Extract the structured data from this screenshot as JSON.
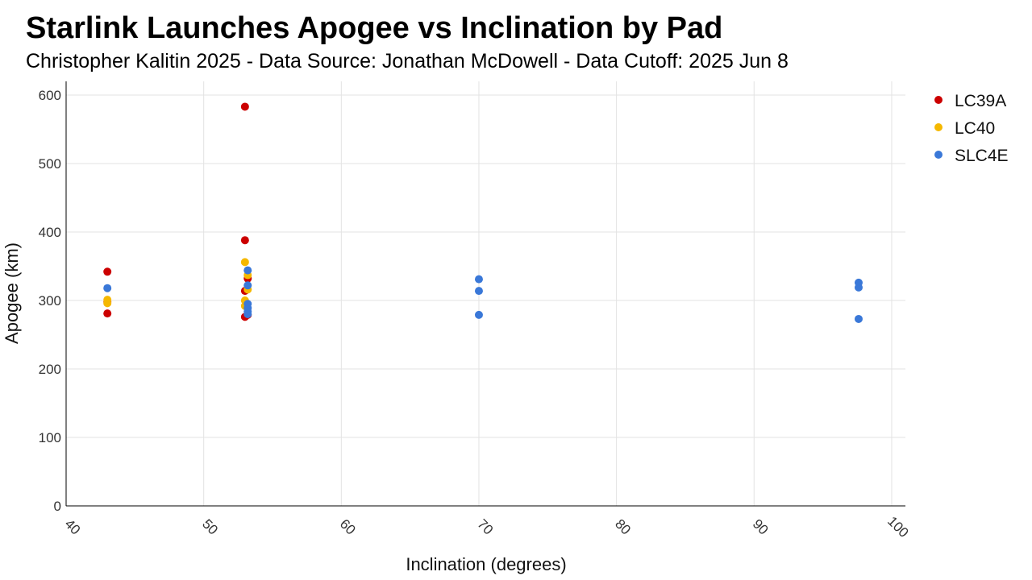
{
  "chart_data": {
    "type": "scatter",
    "title": "Starlink Launches Apogee vs Inclination by Pad",
    "subtitle": "Christopher Kalitin 2025 - Data Source: Jonathan McDowell - Data Cutoff: 2025 Jun 8",
    "xlabel": "Inclination (degrees)",
    "ylabel": "Apogee (km)",
    "xlim": [
      40,
      101
    ],
    "ylim": [
      0,
      620
    ],
    "xticks": [
      40,
      50,
      60,
      70,
      80,
      90,
      100
    ],
    "yticks": [
      0,
      100,
      200,
      300,
      400,
      500,
      600
    ],
    "grid": true,
    "legend_position": "right",
    "series": [
      {
        "name": "LC39A",
        "color": "#cc0000",
        "points": [
          {
            "x": 43.0,
            "y": 342
          },
          {
            "x": 43.0,
            "y": 298
          },
          {
            "x": 43.0,
            "y": 281
          },
          {
            "x": 53.0,
            "y": 583
          },
          {
            "x": 53.0,
            "y": 388
          },
          {
            "x": 53.2,
            "y": 332
          },
          {
            "x": 53.0,
            "y": 314
          },
          {
            "x": 53.0,
            "y": 276
          },
          {
            "x": 53.2,
            "y": 279
          }
        ]
      },
      {
        "name": "LC40",
        "color": "#f5b800",
        "points": [
          {
            "x": 43.0,
            "y": 301
          },
          {
            "x": 43.0,
            "y": 296
          },
          {
            "x": 53.0,
            "y": 356
          },
          {
            "x": 53.2,
            "y": 337
          },
          {
            "x": 53.2,
            "y": 316
          },
          {
            "x": 53.0,
            "y": 300
          },
          {
            "x": 53.0,
            "y": 292
          }
        ]
      },
      {
        "name": "SLC4E",
        "color": "#3a78d8",
        "points": [
          {
            "x": 43.0,
            "y": 318
          },
          {
            "x": 53.2,
            "y": 344
          },
          {
            "x": 53.2,
            "y": 322
          },
          {
            "x": 53.2,
            "y": 295
          },
          {
            "x": 53.2,
            "y": 289
          },
          {
            "x": 53.2,
            "y": 284
          },
          {
            "x": 53.2,
            "y": 280
          },
          {
            "x": 70.0,
            "y": 331
          },
          {
            "x": 70.0,
            "y": 314
          },
          {
            "x": 70.0,
            "y": 279
          },
          {
            "x": 97.6,
            "y": 326
          },
          {
            "x": 97.6,
            "y": 319
          },
          {
            "x": 97.6,
            "y": 273
          }
        ]
      }
    ]
  }
}
